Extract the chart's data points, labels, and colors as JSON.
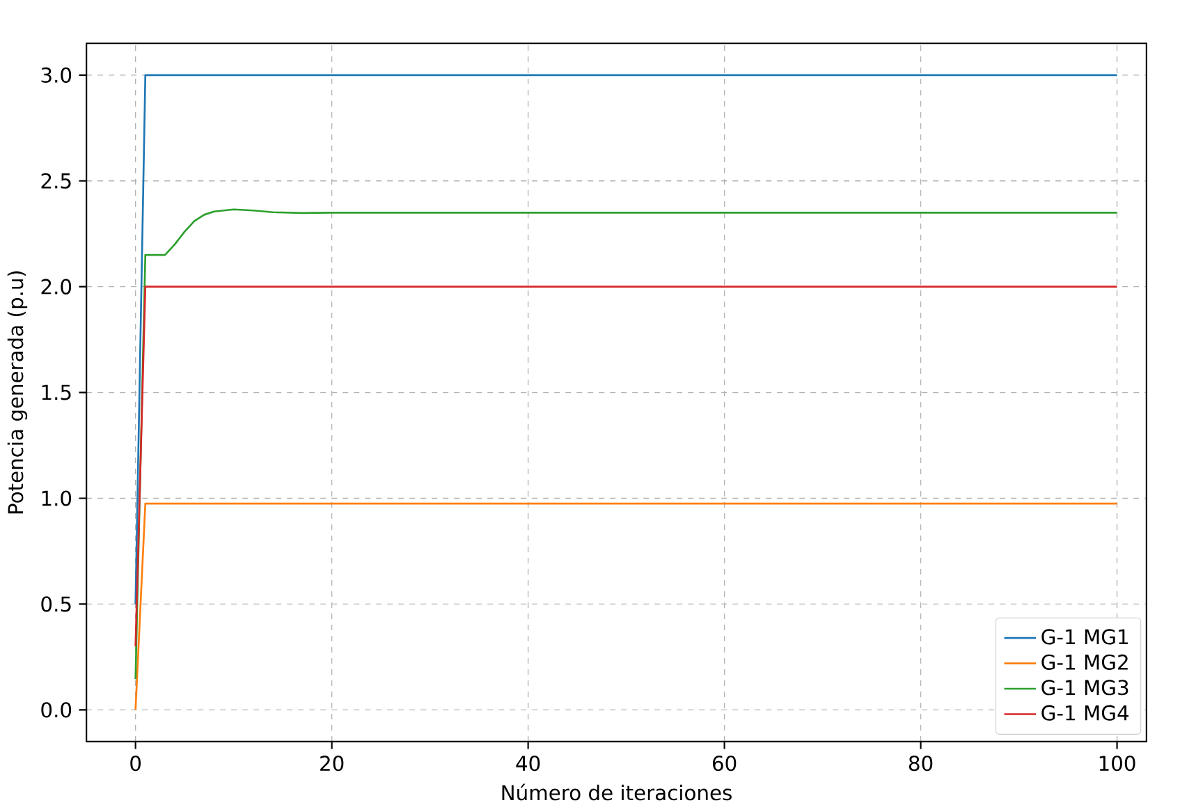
{
  "chart_data": {
    "type": "line",
    "xlabel": "Número de iteraciones",
    "ylabel": "Potencia generada (p.u)",
    "xlim": [
      -5,
      103
    ],
    "ylim": [
      -0.15,
      3.15
    ],
    "xticks": [
      0,
      20,
      40,
      60,
      80,
      100
    ],
    "yticks": [
      {
        "value": 0,
        "label": "0.0"
      },
      {
        "value": 0.5,
        "label": "0.5"
      },
      {
        "value": 1,
        "label": "1.0"
      },
      {
        "value": 1.5,
        "label": "1.5"
      },
      {
        "value": 2,
        "label": "2.0"
      },
      {
        "value": 2.5,
        "label": "2.5"
      },
      {
        "value": 3,
        "label": "3.0"
      }
    ],
    "grid": true,
    "legend": "bottom right",
    "line_style": "solid",
    "marker": "none",
    "series": [
      {
        "name": "G-1 MG1",
        "color": "#1f77b4",
        "x": [
          0,
          1,
          100
        ],
        "values": [
          0.5,
          3.0,
          3.0
        ]
      },
      {
        "name": "G-1 MG2",
        "color": "#ff7f0e",
        "x": [
          0,
          1,
          100
        ],
        "values": [
          0.0,
          0.975,
          0.975
        ]
      },
      {
        "name": "G-1 MG3",
        "color": "#2ca02c",
        "x": [
          0,
          1,
          3,
          4,
          5,
          6,
          7,
          8,
          10,
          12,
          14,
          17,
          20,
          100
        ],
        "values": [
          0.145,
          2.15,
          2.15,
          2.2,
          2.26,
          2.31,
          2.34,
          2.355,
          2.365,
          2.36,
          2.352,
          2.348,
          2.35,
          2.35
        ]
      },
      {
        "name": "G-1 MG4",
        "color": "#d62728",
        "x": [
          0,
          1,
          100
        ],
        "values": [
          0.3,
          2.0,
          2.0
        ]
      }
    ]
  }
}
